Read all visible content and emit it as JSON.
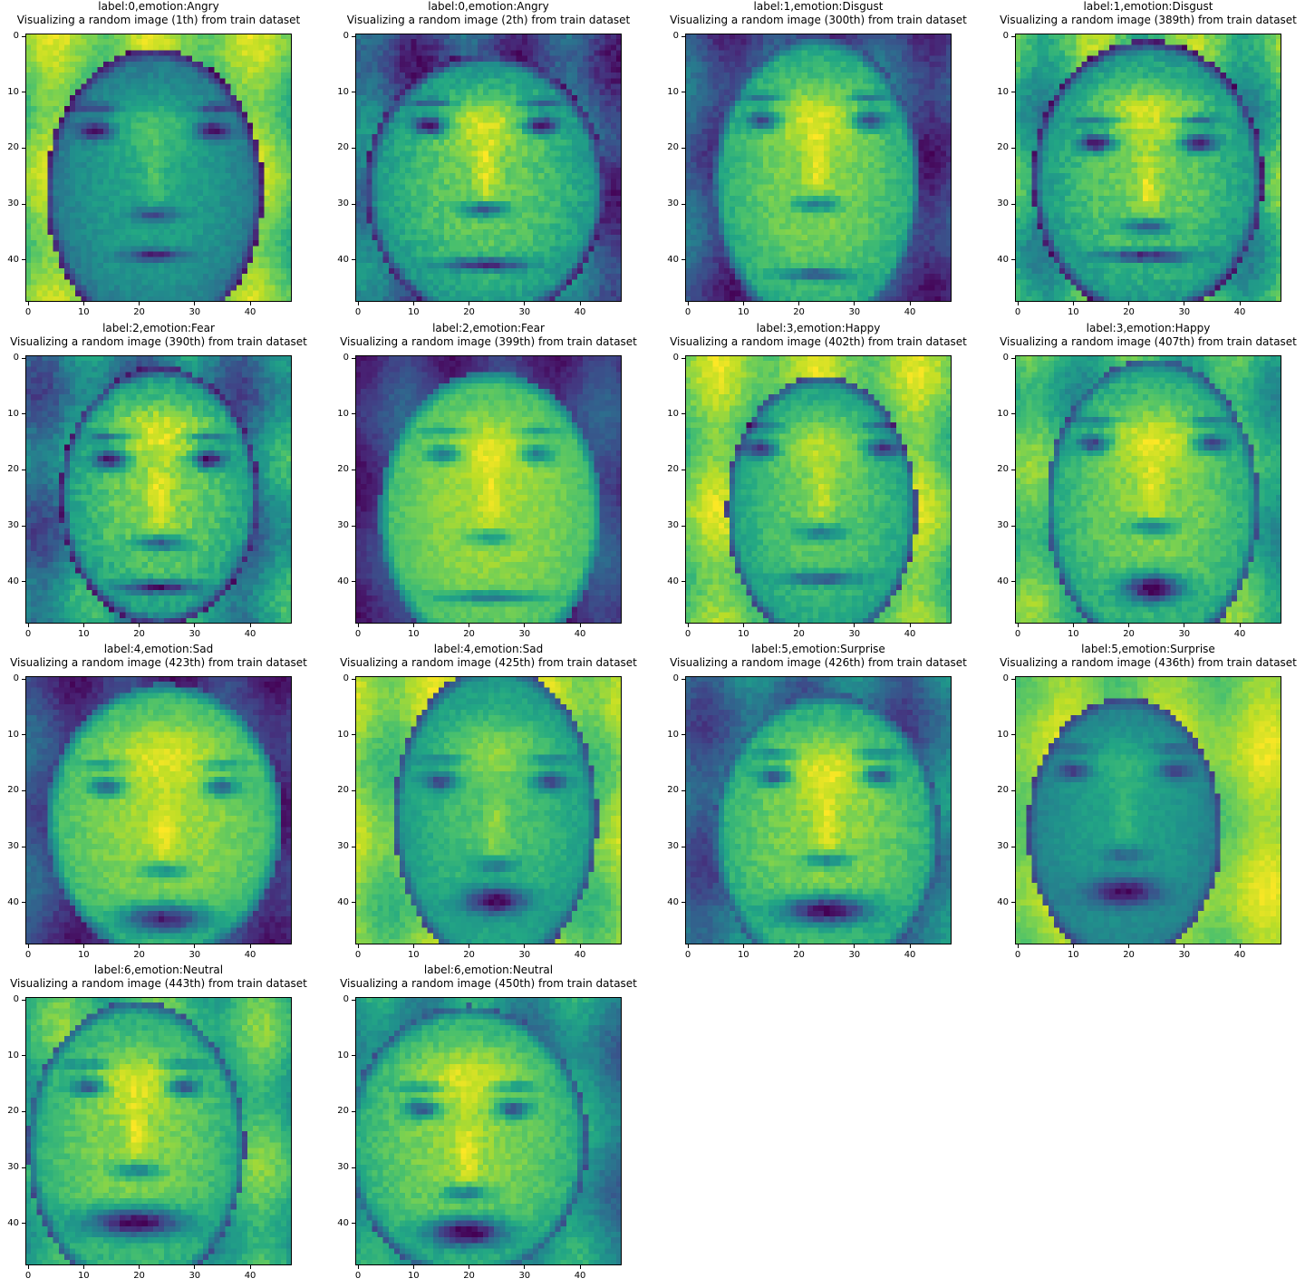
{
  "chart_data": {
    "type": "image-grid",
    "colormap": "viridis",
    "image_size": [
      48,
      48
    ],
    "x_ticks": [
      "0",
      "10",
      "20",
      "30",
      "40"
    ],
    "y_ticks": [
      "0",
      "10",
      "20",
      "30",
      "40"
    ],
    "panels": [
      {
        "title": "label:0,emotion:Angry",
        "subtitle": "Visualizing a random image (1th) from train dataset",
        "label": 0,
        "emotion": "Angry",
        "index": 1
      },
      {
        "title": "label:0,emotion:Angry",
        "subtitle": "Visualizing a random image (2th) from train dataset",
        "label": 0,
        "emotion": "Angry",
        "index": 2
      },
      {
        "title": "label:1,emotion:Disgust",
        "subtitle": "Visualizing a random image (300th) from train dataset",
        "label": 1,
        "emotion": "Disgust",
        "index": 300
      },
      {
        "title": "label:1,emotion:Disgust",
        "subtitle": "Visualizing a random image (389th) from train dataset",
        "label": 1,
        "emotion": "Disgust",
        "index": 389
      },
      {
        "title": "label:2,emotion:Fear",
        "subtitle": "Visualizing a random image (390th) from train dataset",
        "label": 2,
        "emotion": "Fear",
        "index": 390
      },
      {
        "title": "label:2,emotion:Fear",
        "subtitle": "Visualizing a random image (399th) from train dataset",
        "label": 2,
        "emotion": "Fear",
        "index": 399
      },
      {
        "title": "label:3,emotion:Happy",
        "subtitle": "Visualizing a random image (402th) from train dataset",
        "label": 3,
        "emotion": "Happy",
        "index": 402
      },
      {
        "title": "label:3,emotion:Happy",
        "subtitle": "Visualizing a random image (407th) from train dataset",
        "label": 3,
        "emotion": "Happy",
        "index": 407
      },
      {
        "title": "label:4,emotion:Sad",
        "subtitle": "Visualizing a random image (423th) from train dataset",
        "label": 4,
        "emotion": "Sad",
        "index": 423
      },
      {
        "title": "label:4,emotion:Sad",
        "subtitle": "Visualizing a random image (425th) from train dataset",
        "label": 4,
        "emotion": "Sad",
        "index": 425
      },
      {
        "title": "label:5,emotion:Surprise",
        "subtitle": "Visualizing a random image (426th) from train dataset",
        "label": 5,
        "emotion": "Surprise",
        "index": 426
      },
      {
        "title": "label:5,emotion:Surprise",
        "subtitle": "Visualizing a random image (436th) from train dataset",
        "label": 5,
        "emotion": "Surprise",
        "index": 436
      },
      {
        "title": "label:6,emotion:Neutral",
        "subtitle": "Visualizing a random image (443th) from train dataset",
        "label": 6,
        "emotion": "Neutral",
        "index": 443
      },
      {
        "title": "label:6,emotion:Neutral",
        "subtitle": "Visualizing a random image (450th) from train dataset",
        "label": 6,
        "emotion": "Neutral",
        "index": 450
      }
    ]
  }
}
